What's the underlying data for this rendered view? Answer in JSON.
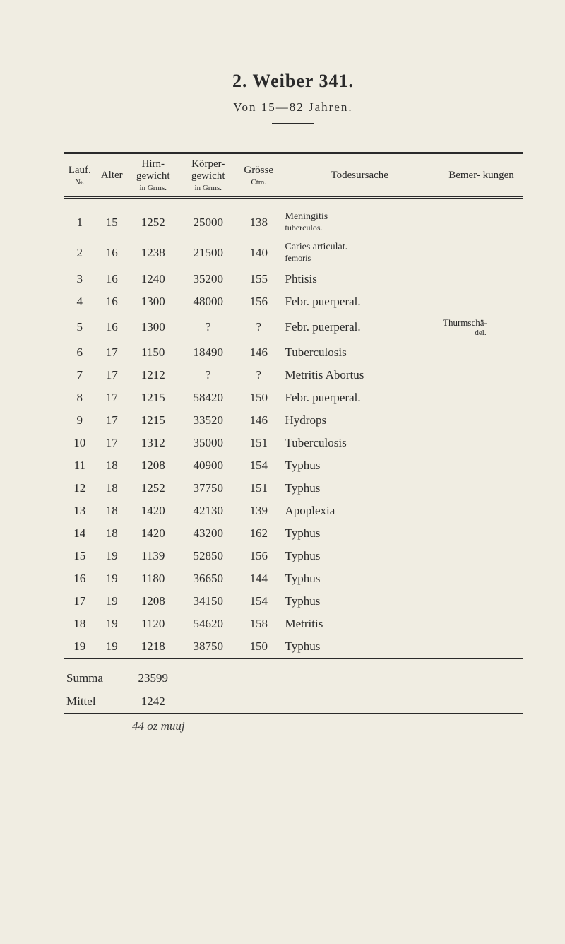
{
  "title": "2. Weiber 341.",
  "subtitle": "Von 15—82 Jahren.",
  "headers": {
    "lauf": {
      "main": "Lauf.",
      "sub": "№."
    },
    "alter": {
      "main": "Alter"
    },
    "hirn": {
      "main": "Hirn-\ngewicht",
      "sub": "in Grms."
    },
    "korper": {
      "main": "Körper-\ngewicht",
      "sub": "in Grms."
    },
    "grosse": {
      "main": "Grösse",
      "sub": "Ctm."
    },
    "todes": {
      "main": "Todesursache"
    },
    "bemerk": {
      "main": "Bemer-\nkungen"
    }
  },
  "rows": [
    {
      "lauf": "1",
      "alter": "15",
      "hirn": "1252",
      "korper": "25000",
      "grosse": "138",
      "todes_main": "Meningitis",
      "todes_sub": "tuberculos.",
      "bemerk": ""
    },
    {
      "lauf": "2",
      "alter": "16",
      "hirn": "1238",
      "korper": "21500",
      "grosse": "140",
      "todes_main": "Caries articulat.",
      "todes_sub": "femoris",
      "bemerk": ""
    },
    {
      "lauf": "3",
      "alter": "16",
      "hirn": "1240",
      "korper": "35200",
      "grosse": "155",
      "todes_main": "Phtisis",
      "todes_sub": "",
      "bemerk": ""
    },
    {
      "lauf": "4",
      "alter": "16",
      "hirn": "1300",
      "korper": "48000",
      "grosse": "156",
      "todes_main": "Febr. puerperal.",
      "todes_sub": "",
      "bemerk": ""
    },
    {
      "lauf": "5",
      "alter": "16",
      "hirn": "1300",
      "korper": "?",
      "grosse": "?",
      "todes_main": "Febr. puerperal.",
      "todes_sub": "",
      "bemerk": "Thurmschä-",
      "bemerk_sub": "del."
    },
    {
      "lauf": "6",
      "alter": "17",
      "hirn": "1150",
      "korper": "18490",
      "grosse": "146",
      "todes_main": "Tuberculosis",
      "todes_sub": "",
      "bemerk": ""
    },
    {
      "lauf": "7",
      "alter": "17",
      "hirn": "1212",
      "korper": "?",
      "grosse": "?",
      "todes_main": "Metritis Abortus",
      "todes_sub": "",
      "bemerk": ""
    },
    {
      "lauf": "8",
      "alter": "17",
      "hirn": "1215",
      "korper": "58420",
      "grosse": "150",
      "todes_main": "Febr. puerperal.",
      "todes_sub": "",
      "bemerk": ""
    },
    {
      "lauf": "9",
      "alter": "17",
      "hirn": "1215",
      "korper": "33520",
      "grosse": "146",
      "todes_main": "Hydrops",
      "todes_sub": "",
      "bemerk": ""
    },
    {
      "lauf": "10",
      "alter": "17",
      "hirn": "1312",
      "korper": "35000",
      "grosse": "151",
      "todes_main": "Tuberculosis",
      "todes_sub": "",
      "bemerk": ""
    },
    {
      "lauf": "11",
      "alter": "18",
      "hirn": "1208",
      "korper": "40900",
      "grosse": "154",
      "todes_main": "Typhus",
      "todes_sub": "",
      "bemerk": ""
    },
    {
      "lauf": "12",
      "alter": "18",
      "hirn": "1252",
      "korper": "37750",
      "grosse": "151",
      "todes_main": "Typhus",
      "todes_sub": "",
      "bemerk": ""
    },
    {
      "lauf": "13",
      "alter": "18",
      "hirn": "1420",
      "korper": "42130",
      "grosse": "139",
      "todes_main": "Apoplexia",
      "todes_sub": "",
      "bemerk": ""
    },
    {
      "lauf": "14",
      "alter": "18",
      "hirn": "1420",
      "korper": "43200",
      "grosse": "162",
      "todes_main": "Typhus",
      "todes_sub": "",
      "bemerk": ""
    },
    {
      "lauf": "15",
      "alter": "19",
      "hirn": "1139",
      "korper": "52850",
      "grosse": "156",
      "todes_main": "Typhus",
      "todes_sub": "",
      "bemerk": ""
    },
    {
      "lauf": "16",
      "alter": "19",
      "hirn": "1180",
      "korper": "36650",
      "grosse": "144",
      "todes_main": "Typhus",
      "todes_sub": "",
      "bemerk": ""
    },
    {
      "lauf": "17",
      "alter": "19",
      "hirn": "1208",
      "korper": "34150",
      "grosse": "154",
      "todes_main": "Typhus",
      "todes_sub": "",
      "bemerk": ""
    },
    {
      "lauf": "18",
      "alter": "19",
      "hirn": "1120",
      "korper": "54620",
      "grosse": "158",
      "todes_main": "Metritis",
      "todes_sub": "",
      "bemerk": ""
    },
    {
      "lauf": "19",
      "alter": "19",
      "hirn": "1218",
      "korper": "38750",
      "grosse": "150",
      "todes_main": "Typhus",
      "todes_sub": "",
      "bemerk": ""
    }
  ],
  "summa": {
    "label": "Summa",
    "hirn": "23599"
  },
  "mittel": {
    "label": "Mittel",
    "hirn": "1242"
  },
  "handwriting": "44   oz  muuj",
  "styling": {
    "background_color": "#f0ede2",
    "text_color": "#2a2a2a",
    "title_fontsize": 26,
    "subtitle_fontsize": 17,
    "body_fontsize": 17,
    "header_fontsize": 15,
    "sub_fontsize": 11,
    "rule_color": "#2a2a2a",
    "column_widths_pct": [
      7,
      7,
      11,
      13,
      9,
      35,
      18
    ]
  }
}
